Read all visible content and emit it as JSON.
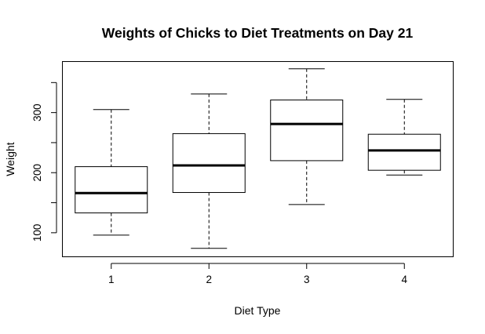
{
  "chart_data": {
    "type": "boxplot",
    "title": "Weights of Chicks to Diet Treatments on Day 21",
    "xlabel": "Diet Type",
    "ylabel": "Weight",
    "categories": [
      "1",
      "2",
      "3",
      "4"
    ],
    "ylim": [
      60,
      385
    ],
    "yticks": [
      100,
      200,
      300
    ],
    "grid": false,
    "boxes": [
      {
        "name": "1",
        "min": 96,
        "q1": 133,
        "median": 166,
        "q3": 210,
        "max": 305
      },
      {
        "name": "2",
        "min": 74,
        "q1": 167,
        "median": 212,
        "q3": 265,
        "max": 331
      },
      {
        "name": "3",
        "min": 147,
        "q1": 220,
        "median": 281,
        "q3": 321,
        "max": 373
      },
      {
        "name": "4",
        "min": 196,
        "q1": 204,
        "median": 237,
        "q3": 264,
        "max": 322
      }
    ]
  }
}
